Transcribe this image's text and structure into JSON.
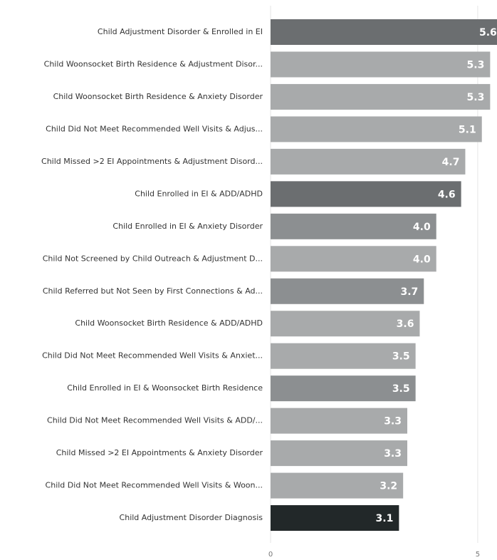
{
  "chart_data": {
    "type": "bar",
    "orientation": "horizontal",
    "categories": [
      "Child Adjustment Disorder & Enrolled in EI",
      "Child Woonsocket Birth Residence & Adjustment Disor...",
      "Child Woonsocket Birth Residence & Anxiety Disorder",
      "Child Did Not Meet Recommended Well Visits & Adjus...",
      "Child Missed >2 EI Appointments & Adjustment Disord...",
      "Child Enrolled in EI & ADD/ADHD",
      "Child Enrolled in EI & Anxiety Disorder",
      "Child Not Screened by Child Outreach & Adjustment D...",
      "Child Referred but Not Seen by First Connections & Ad...",
      "Child Woonsocket Birth Residence & ADD/ADHD",
      "Child Did Not Meet Recommended Well Visits & Anxiet...",
      "Child Enrolled in EI & Woonsocket Birth Residence",
      "Child Did Not Meet Recommended Well Visits & ADD/...",
      "Child Missed >2 EI Appointments & Anxiety Disorder",
      "Child Did Not Meet Recommended Well Visits & Woon...",
      "Child Adjustment Disorder Diagnosis"
    ],
    "values": [
      5.6,
      5.3,
      5.3,
      5.1,
      4.7,
      4.6,
      4.0,
      4.0,
      3.7,
      3.6,
      3.5,
      3.5,
      3.3,
      3.3,
      3.2,
      3.1
    ],
    "value_labels": [
      "5.6",
      "5.3",
      "5.3",
      "5.1",
      "4.7",
      "4.6",
      "4.0",
      "4.0",
      "3.7",
      "3.6",
      "3.5",
      "3.5",
      "3.3",
      "3.3",
      "3.2",
      "3.1"
    ],
    "colors": [
      "#6b6e70",
      "#a8aaab",
      "#a8aaab",
      "#a8aaab",
      "#a8aaab",
      "#6b6e70",
      "#8c8f91",
      "#a8aaab",
      "#8c8f91",
      "#a8aaab",
      "#a8aaab",
      "#8c8f91",
      "#a8aaab",
      "#a8aaab",
      "#a8aaab",
      "#222829"
    ],
    "xlim": [
      0,
      5.5
    ],
    "xticks": [
      0,
      5
    ],
    "grid": true
  }
}
